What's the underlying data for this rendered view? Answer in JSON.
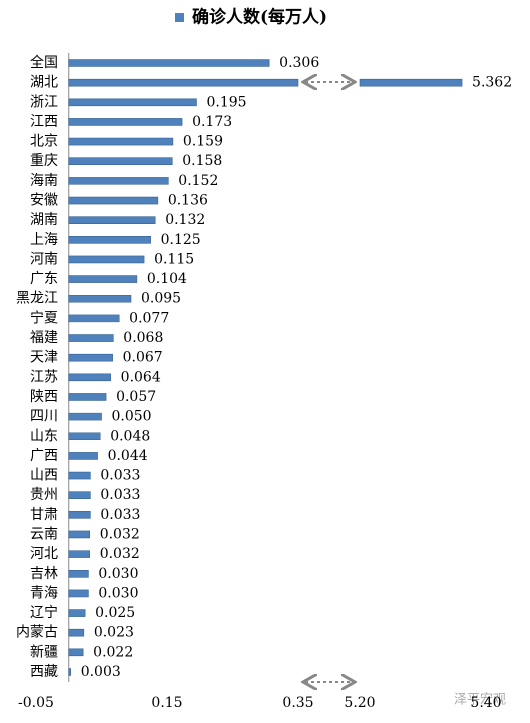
{
  "chart_data": {
    "type": "bar",
    "orientation": "horizontal",
    "categories": [
      "全国",
      "湖北",
      "浙江",
      "江西",
      "北京",
      "重庆",
      "海南",
      "安徽",
      "湖南",
      "上海",
      "河南",
      "广东",
      "黑龙江",
      "宁夏",
      "福建",
      "天津",
      "江苏",
      "陕西",
      "四川",
      "山东",
      "广西",
      "山西",
      "贵州",
      "甘肃",
      "云南",
      "河北",
      "吉林",
      "青海",
      "辽宁",
      "内蒙古",
      "新疆",
      "西藏"
    ],
    "series": [
      {
        "name": "确诊人数(每万人)",
        "color": "#4f81bd",
        "values": [
          0.306,
          5.362,
          0.195,
          0.173,
          0.159,
          0.158,
          0.152,
          0.136,
          0.132,
          0.125,
          0.115,
          0.104,
          0.095,
          0.077,
          0.068,
          0.067,
          0.064,
          0.057,
          0.05,
          0.048,
          0.044,
          0.033,
          0.033,
          0.033,
          0.032,
          0.032,
          0.03,
          0.03,
          0.025,
          0.023,
          0.022,
          0.003
        ],
        "value_labels": [
          "0.306",
          "5.362",
          "0.195",
          "0.173",
          "0.159",
          "0.158",
          "0.152",
          "0.136",
          "0.132",
          "0.125",
          "0.115",
          "0.104",
          "0.095",
          "0.077",
          "0.068",
          "0.067",
          "0.064",
          "0.057",
          "0.050",
          "0.048",
          "0.044",
          "0.033",
          "0.033",
          "0.033",
          "0.032",
          "0.032",
          "0.030",
          "0.030",
          "0.025",
          "0.023",
          "0.022",
          "0.003"
        ]
      }
    ],
    "xlim": [
      -0.05,
      0.35
    ],
    "xlim2": [
      5.2,
      5.4
    ],
    "xticks": [
      -0.05,
      0.15,
      0.35,
      {
        "value": 5.2,
        "label": "5.20"
      },
      {
        "value": 5.4,
        "label": "5.40"
      }
    ],
    "legend": "top",
    "watermark": "泽平宏观"
  }
}
